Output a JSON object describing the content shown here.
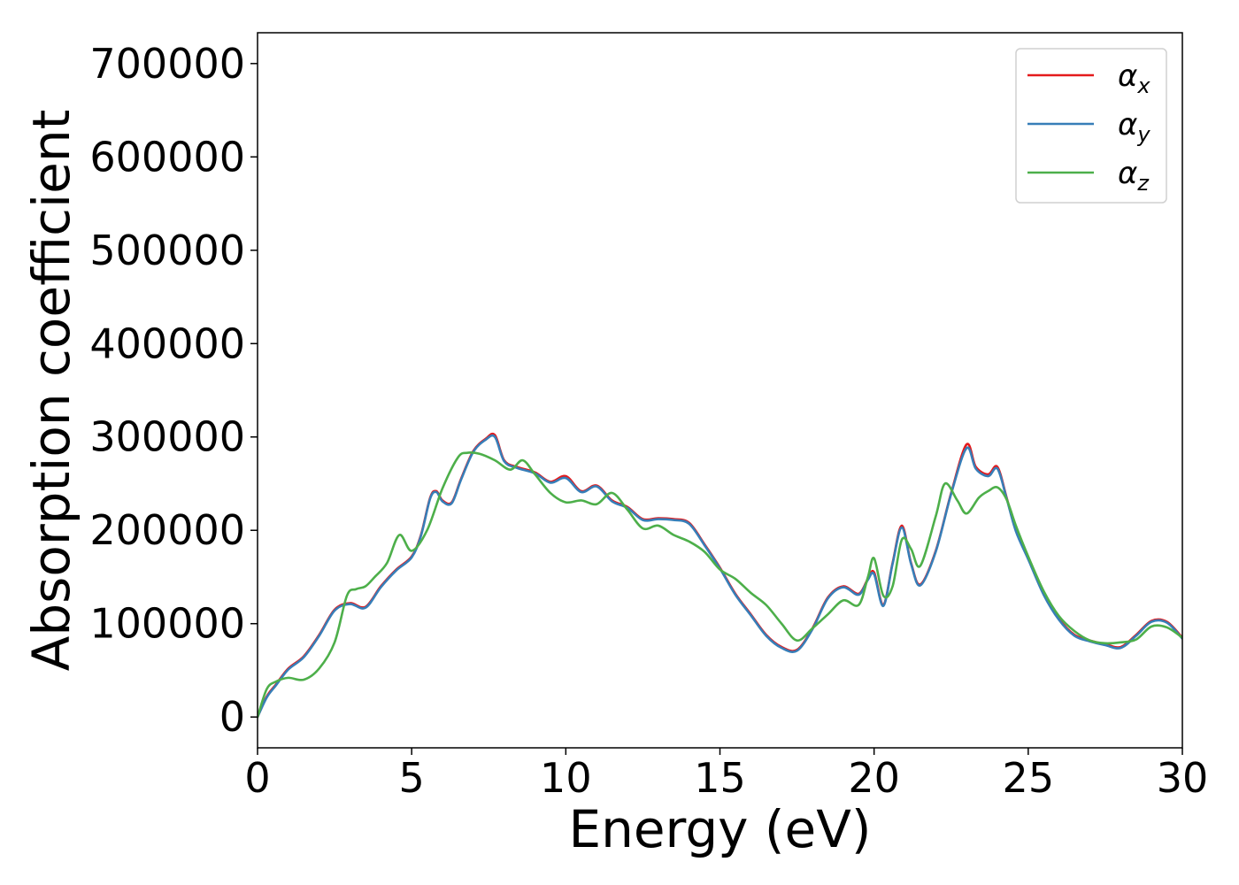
{
  "chart_data": {
    "type": "line",
    "xlabel": "Energy (eV)",
    "ylabel": "Absorption coefficient",
    "xlim": [
      0,
      30
    ],
    "ylim": [
      -33000,
      733000
    ],
    "xticks": [
      0,
      5,
      10,
      15,
      20,
      25,
      30
    ],
    "xtick_labels": [
      "0",
      "5",
      "10",
      "15",
      "20",
      "25",
      "30"
    ],
    "yticks": [
      0,
      100000,
      200000,
      300000,
      400000,
      500000,
      600000,
      700000
    ],
    "ytick_labels": [
      "0",
      "100000",
      "200000",
      "300000",
      "400000",
      "500000",
      "600000",
      "700000"
    ],
    "grid": false,
    "legend_position": "top-right",
    "series": [
      {
        "name": "α",
        "subscript": "x",
        "color": "#e41a1c",
        "x": [
          0,
          0.3,
          0.6,
          1.0,
          1.5,
          2.0,
          2.5,
          3.0,
          3.5,
          4.0,
          4.5,
          5.0,
          5.3,
          5.6,
          5.8,
          6.0,
          6.3,
          6.6,
          7.0,
          7.4,
          7.7,
          8.0,
          8.4,
          9.0,
          9.5,
          10.0,
          10.5,
          11.0,
          11.5,
          12.0,
          12.5,
          13.0,
          13.5,
          14.0,
          14.5,
          15.0,
          15.5,
          16.0,
          16.5,
          17.0,
          17.5,
          18.0,
          18.5,
          19.0,
          19.5,
          19.8,
          20.0,
          20.3,
          20.6,
          20.9,
          21.2,
          21.5,
          22.0,
          22.5,
          23.0,
          23.3,
          23.7,
          24.0,
          24.3,
          24.6,
          25.0,
          25.5,
          26.0,
          26.5,
          27.0,
          27.5,
          28.0,
          28.5,
          29.0,
          29.5,
          30.0
        ],
        "values": [
          0,
          22000,
          35000,
          52000,
          65000,
          88000,
          115000,
          122000,
          118000,
          140000,
          158000,
          172000,
          195000,
          235000,
          242000,
          232000,
          230000,
          255000,
          285000,
          298000,
          302000,
          275000,
          268000,
          262000,
          252000,
          258000,
          242000,
          248000,
          232000,
          225000,
          212000,
          213000,
          212000,
          208000,
          185000,
          160000,
          132000,
          110000,
          88000,
          75000,
          72000,
          95000,
          128000,
          140000,
          132000,
          148000,
          155000,
          120000,
          165000,
          205000,
          165000,
          142000,
          178000,
          240000,
          292000,
          268000,
          260000,
          268000,
          235000,
          200000,
          170000,
          132000,
          105000,
          88000,
          82000,
          78000,
          75000,
          88000,
          103000,
          102000,
          85000
        ]
      },
      {
        "name": "α",
        "subscript": "y",
        "color": "#377eb8",
        "x": [
          0,
          0.3,
          0.6,
          1.0,
          1.5,
          2.0,
          2.5,
          3.0,
          3.5,
          4.0,
          4.5,
          5.0,
          5.3,
          5.6,
          5.8,
          6.0,
          6.3,
          6.6,
          7.0,
          7.4,
          7.7,
          8.0,
          8.4,
          9.0,
          9.5,
          10.0,
          10.5,
          11.0,
          11.5,
          12.0,
          12.5,
          13.0,
          13.5,
          14.0,
          14.5,
          15.0,
          15.5,
          16.0,
          16.5,
          17.0,
          17.5,
          18.0,
          18.5,
          19.0,
          19.5,
          19.8,
          20.0,
          20.3,
          20.6,
          20.9,
          21.2,
          21.5,
          22.0,
          22.5,
          23.0,
          23.3,
          23.7,
          24.0,
          24.3,
          24.6,
          25.0,
          25.5,
          26.0,
          26.5,
          27.0,
          27.5,
          28.0,
          28.5,
          29.0,
          29.5,
          30.0
        ],
        "values": [
          0,
          21000,
          34000,
          51000,
          64000,
          87000,
          114000,
          121000,
          117000,
          139000,
          157000,
          171000,
          194000,
          234000,
          241000,
          231000,
          229000,
          254000,
          284000,
          297000,
          300000,
          274000,
          267000,
          261000,
          251000,
          256000,
          241000,
          247000,
          231000,
          224000,
          211000,
          212000,
          211000,
          207000,
          184000,
          159000,
          131000,
          109000,
          87000,
          74000,
          71000,
          94000,
          127000,
          139000,
          131000,
          147000,
          153000,
          119000,
          164000,
          203000,
          164000,
          141000,
          177000,
          239000,
          288000,
          266000,
          258000,
          266000,
          234000,
          199000,
          169000,
          131000,
          104000,
          87000,
          81000,
          77000,
          74000,
          87000,
          102000,
          101000,
          84000
        ]
      },
      {
        "name": "α",
        "subscript": "z",
        "color": "#4daf4a",
        "x": [
          0,
          0.3,
          0.6,
          1.0,
          1.5,
          2.0,
          2.5,
          2.9,
          3.2,
          3.5,
          3.8,
          4.2,
          4.6,
          5.0,
          5.5,
          6.0,
          6.5,
          6.8,
          7.2,
          7.7,
          8.2,
          8.6,
          9.0,
          9.5,
          10.0,
          10.5,
          11.0,
          11.5,
          12.0,
          12.5,
          13.0,
          13.5,
          14.0,
          14.5,
          15.0,
          15.5,
          16.0,
          16.5,
          17.0,
          17.5,
          18.0,
          18.5,
          19.0,
          19.5,
          19.8,
          20.0,
          20.3,
          20.6,
          20.9,
          21.2,
          21.5,
          22.0,
          22.3,
          22.7,
          23.0,
          23.4,
          23.7,
          24.0,
          24.3,
          24.6,
          25.0,
          25.5,
          26.0,
          26.5,
          27.0,
          27.5,
          28.0,
          28.5,
          29.0,
          29.5,
          30.0
        ],
        "values": [
          0,
          30000,
          38000,
          42000,
          40000,
          52000,
          80000,
          130000,
          137000,
          140000,
          150000,
          165000,
          195000,
          178000,
          200000,
          245000,
          278000,
          283000,
          282000,
          275000,
          265000,
          275000,
          260000,
          240000,
          230000,
          232000,
          228000,
          240000,
          222000,
          202000,
          205000,
          195000,
          188000,
          177000,
          158000,
          148000,
          133000,
          120000,
          100000,
          82000,
          95000,
          110000,
          125000,
          120000,
          150000,
          170000,
          130000,
          140000,
          190000,
          180000,
          162000,
          215000,
          250000,
          232000,
          218000,
          235000,
          242000,
          246000,
          233000,
          205000,
          172000,
          135000,
          108000,
          92000,
          82000,
          79000,
          80000,
          83000,
          97000,
          96000,
          85000
        ]
      }
    ]
  }
}
